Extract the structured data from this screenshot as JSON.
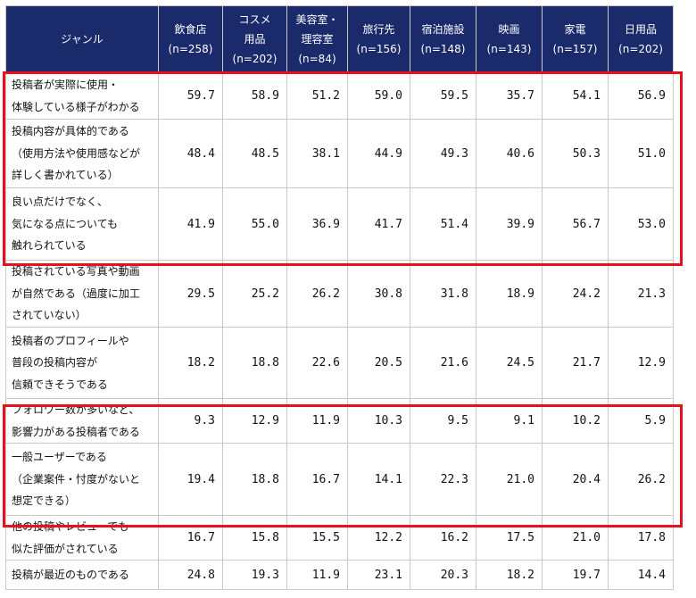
{
  "header": {
    "genre": "ジャンル",
    "columns": [
      {
        "name": [
          "飲食店"
        ],
        "n": "(n=258)"
      },
      {
        "name": [
          "コスメ",
          "用品"
        ],
        "n": "(n=202)"
      },
      {
        "name": [
          "美容室・",
          "理容室"
        ],
        "n": "(n=84)"
      },
      {
        "name": [
          "旅行先"
        ],
        "n": "(n=156)"
      },
      {
        "name": [
          "宿泊施設"
        ],
        "n": "(n=148)"
      },
      {
        "name": [
          "映画"
        ],
        "n": "(n=143)"
      },
      {
        "name": [
          "家電"
        ],
        "n": "(n=157)"
      },
      {
        "name": [
          "日用品"
        ],
        "n": "(n=202)"
      }
    ]
  },
  "rows": [
    {
      "label": [
        "投稿者が実際に使用・",
        "体験している様子がわかる"
      ],
      "values": [
        "59.7",
        "58.9",
        "51.2",
        "59.0",
        "59.5",
        "35.7",
        "54.1",
        "56.9"
      ]
    },
    {
      "label": [
        "投稿内容が具体的である",
        "（使用方法や使用感などが",
        "詳しく書かれている）"
      ],
      "values": [
        "48.4",
        "48.5",
        "38.1",
        "44.9",
        "49.3",
        "40.6",
        "50.3",
        "51.0"
      ]
    },
    {
      "label": [
        "良い点だけでなく、",
        "気になる点についても",
        "触れられている"
      ],
      "values": [
        "41.9",
        "55.0",
        "36.9",
        "41.7",
        "51.4",
        "39.9",
        "56.7",
        "53.0"
      ]
    },
    {
      "label": [
        "投稿されている写真や動画",
        "が自然である（過度に加工",
        "されていない）"
      ],
      "values": [
        "29.5",
        "25.2",
        "26.2",
        "30.8",
        "31.8",
        "18.9",
        "24.2",
        "21.3"
      ]
    },
    {
      "label": [
        "投稿者のプロフィールや",
        "普段の投稿内容が",
        "信頼できそうである"
      ],
      "values": [
        "18.2",
        "18.8",
        "22.6",
        "20.5",
        "21.6",
        "24.5",
        "21.7",
        "12.9"
      ]
    },
    {
      "label": [
        "フォロワー数が多いなど、",
        "影響力がある投稿者である"
      ],
      "values": [
        "9.3",
        "12.9",
        "11.9",
        "10.3",
        "9.5",
        "9.1",
        "10.2",
        "5.9"
      ]
    },
    {
      "label": [
        "一般ユーザーである",
        "（企業案件・忖度がないと",
        "想定できる）"
      ],
      "values": [
        "19.4",
        "18.8",
        "16.7",
        "14.1",
        "22.3",
        "21.0",
        "20.4",
        "26.2"
      ]
    },
    {
      "label": [
        "他の投稿やレビューでも",
        "似た評価がされている"
      ],
      "values": [
        "16.7",
        "15.8",
        "15.5",
        "12.2",
        "16.2",
        "17.5",
        "21.0",
        "17.8"
      ]
    },
    {
      "label": [
        "投稿が最近のものである"
      ],
      "values": [
        "24.8",
        "19.3",
        "11.9",
        "23.1",
        "20.3",
        "18.2",
        "19.7",
        "14.4"
      ]
    }
  ],
  "colors": {
    "header_bg": "#1b2a6b",
    "highlight": "#e8101e",
    "grid": "#c9c9c9"
  }
}
